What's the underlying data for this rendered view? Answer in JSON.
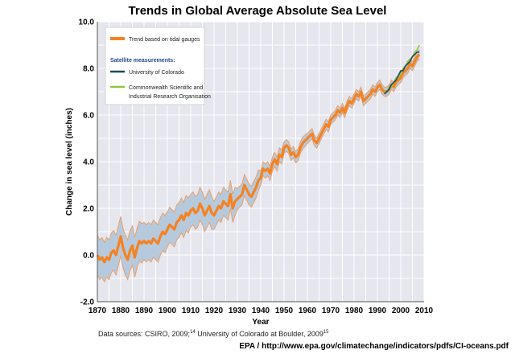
{
  "chart_data": {
    "type": "line",
    "title": "Trends in Global Average Absolute Sea Level",
    "xlabel": "Year",
    "ylabel": "Change in sea level (inches)",
    "xlim": [
      1870,
      2010
    ],
    "ylim": [
      -2.0,
      10.0
    ],
    "x_ticks": [
      1870,
      1880,
      1890,
      1900,
      1910,
      1920,
      1930,
      1940,
      1950,
      1960,
      1970,
      1980,
      1990,
      2000,
      2010
    ],
    "y_ticks": [
      -2.0,
      0.0,
      2.0,
      4.0,
      6.0,
      8.0,
      10.0
    ],
    "y_tick_labels": [
      "-2.0",
      "0.0",
      "2.0",
      "4.0",
      "6.0",
      "8.0",
      "10.0"
    ],
    "grid": true,
    "legend_position": "top-left",
    "legend": {
      "tidal_label": "Trend based on tidal gauges",
      "satellite_heading": "Satellite measurements:",
      "colorado_label": "University of Colorado",
      "csiro_label_line1": "Commonwealth Scientific and",
      "csiro_label_line2": "Industrial Research Organisation"
    },
    "colors": {
      "tidal": "#f58220",
      "band": "#b7c9dc",
      "band_edge": "#e8a16a",
      "colorado": "#1d4a5c",
      "csiro": "#8cc63f",
      "plot_bg": "#e6e6ee",
      "grid": "#ffffff"
    },
    "series": [
      {
        "name": "Trend based on tidal gauges",
        "x": [
          1870,
          1871,
          1872,
          1873,
          1874,
          1875,
          1876,
          1877,
          1878,
          1879,
          1880,
          1881,
          1882,
          1883,
          1884,
          1885,
          1886,
          1887,
          1888,
          1889,
          1890,
          1891,
          1892,
          1893,
          1894,
          1895,
          1896,
          1897,
          1898,
          1899,
          1900,
          1901,
          1902,
          1903,
          1904,
          1905,
          1906,
          1907,
          1908,
          1909,
          1910,
          1911,
          1912,
          1913,
          1914,
          1915,
          1916,
          1917,
          1918,
          1919,
          1920,
          1921,
          1922,
          1923,
          1924,
          1925,
          1926,
          1927,
          1928,
          1929,
          1930,
          1931,
          1932,
          1933,
          1934,
          1935,
          1936,
          1937,
          1938,
          1939,
          1940,
          1941,
          1942,
          1943,
          1944,
          1945,
          1946,
          1947,
          1948,
          1949,
          1950,
          1951,
          1952,
          1953,
          1954,
          1955,
          1956,
          1957,
          1958,
          1959,
          1960,
          1961,
          1962,
          1963,
          1964,
          1965,
          1966,
          1967,
          1968,
          1969,
          1970,
          1971,
          1972,
          1973,
          1974,
          1975,
          1976,
          1977,
          1978,
          1979,
          1980,
          1981,
          1982,
          1983,
          1984,
          1985,
          1986,
          1987,
          1988,
          1989,
          1990,
          1991,
          1992,
          1993,
          1994,
          1995,
          1996,
          1997,
          1998,
          1999,
          2000,
          2001,
          2002,
          2003,
          2004,
          2005,
          2006,
          2007,
          2008
        ],
        "y": [
          0.0,
          -0.2,
          -0.1,
          -0.3,
          -0.1,
          -0.2,
          0.1,
          0.2,
          0.0,
          0.4,
          0.8,
          0.3,
          0.0,
          -0.2,
          0.2,
          0.4,
          -0.1,
          0.3,
          0.6,
          0.5,
          0.6,
          0.5,
          0.6,
          0.5,
          0.7,
          0.6,
          0.5,
          0.8,
          1.0,
          0.9,
          1.1,
          1.3,
          1.2,
          1.1,
          1.4,
          1.5,
          1.7,
          1.5,
          1.8,
          1.7,
          1.9,
          2.0,
          1.8,
          1.9,
          2.2,
          2.0,
          1.7,
          1.9,
          2.1,
          1.8,
          1.7,
          1.9,
          2.1,
          2.0,
          2.3,
          2.2,
          2.1,
          2.6,
          2.0,
          2.3,
          2.4,
          2.5,
          2.6,
          3.0,
          2.8,
          2.6,
          2.5,
          2.7,
          2.9,
          3.2,
          3.3,
          3.7,
          3.6,
          3.7,
          3.5,
          3.9,
          4.1,
          3.9,
          4.3,
          4.2,
          4.6,
          4.7,
          4.6,
          4.3,
          4.4,
          4.2,
          4.3,
          4.6,
          4.8,
          4.9,
          5.0,
          5.1,
          5.2,
          4.9,
          4.8,
          5.0,
          5.2,
          5.4,
          5.6,
          5.5,
          5.8,
          5.9,
          6.0,
          6.2,
          6.1,
          6.3,
          6.1,
          6.4,
          6.6,
          6.5,
          6.7,
          6.9,
          6.8,
          7.0,
          6.6,
          6.7,
          6.8,
          6.9,
          7.1,
          7.0,
          7.2,
          7.3,
          7.1,
          7.0,
          7.0,
          7.1,
          7.3,
          7.2,
          7.4,
          7.5,
          7.6,
          7.8,
          7.9,
          8.0,
          8.2,
          8.1,
          8.3,
          8.5,
          8.6
        ],
        "uncertainty": [
          0.85,
          0.85,
          0.85,
          0.85,
          0.85,
          0.85,
          0.85,
          0.85,
          0.85,
          0.85,
          0.85,
          0.85,
          0.85,
          0.85,
          0.85,
          0.85,
          0.85,
          0.85,
          0.85,
          0.85,
          0.8,
          0.8,
          0.8,
          0.8,
          0.8,
          0.8,
          0.8,
          0.8,
          0.8,
          0.8,
          0.75,
          0.75,
          0.75,
          0.75,
          0.75,
          0.75,
          0.75,
          0.75,
          0.75,
          0.75,
          0.7,
          0.7,
          0.7,
          0.7,
          0.7,
          0.7,
          0.7,
          0.7,
          0.7,
          0.7,
          0.6,
          0.6,
          0.6,
          0.6,
          0.6,
          0.6,
          0.6,
          0.6,
          0.6,
          0.6,
          0.45,
          0.45,
          0.45,
          0.45,
          0.45,
          0.45,
          0.45,
          0.45,
          0.45,
          0.45,
          0.3,
          0.3,
          0.3,
          0.3,
          0.3,
          0.3,
          0.3,
          0.3,
          0.3,
          0.3,
          0.25,
          0.25,
          0.25,
          0.25,
          0.25,
          0.25,
          0.25,
          0.25,
          0.25,
          0.25,
          0.22,
          0.22,
          0.22,
          0.22,
          0.22,
          0.22,
          0.22,
          0.22,
          0.22,
          0.22,
          0.2,
          0.2,
          0.2,
          0.2,
          0.2,
          0.2,
          0.2,
          0.2,
          0.2,
          0.2,
          0.2,
          0.2,
          0.2,
          0.2,
          0.2,
          0.2,
          0.2,
          0.2,
          0.2,
          0.2,
          0.2,
          0.2,
          0.2,
          0.2,
          0.2,
          0.2,
          0.2,
          0.2,
          0.2,
          0.2,
          0.2,
          0.2,
          0.2,
          0.2,
          0.2,
          0.2,
          0.2,
          0.2,
          0.2
        ]
      },
      {
        "name": "University of Colorado",
        "x": [
          1993,
          1994,
          1995,
          1996,
          1997,
          1998,
          1999,
          2000,
          2001,
          2002,
          2003,
          2004,
          2005,
          2006,
          2007,
          2008
        ],
        "y": [
          6.9,
          7.0,
          7.1,
          7.3,
          7.4,
          7.5,
          7.7,
          7.9,
          7.9,
          8.1,
          8.2,
          8.3,
          8.5,
          8.6,
          8.7,
          8.7
        ]
      },
      {
        "name": "Commonwealth Scientific and Industrial Research Organisation",
        "x": [
          1993,
          1994,
          1995,
          1996,
          1997,
          1998,
          1999,
          2000,
          2001,
          2002,
          2003,
          2004,
          2005,
          2006,
          2007,
          2008
        ],
        "y": [
          6.9,
          7.0,
          7.2,
          7.2,
          7.4,
          7.6,
          7.6,
          7.8,
          8.0,
          8.1,
          8.3,
          8.4,
          8.5,
          8.7,
          8.8,
          9.0
        ]
      }
    ]
  },
  "footer": {
    "sources_prefix": "Data sources: CSIRO, 2009;",
    "sources_ref1": "14",
    "sources_middle": " University of Colorado at Boulder, 2009",
    "sources_ref2": "15",
    "credit": "EPA / http://www.epa.gov/climatechange/indicators/pdfs/CI-oceans.pdf"
  }
}
